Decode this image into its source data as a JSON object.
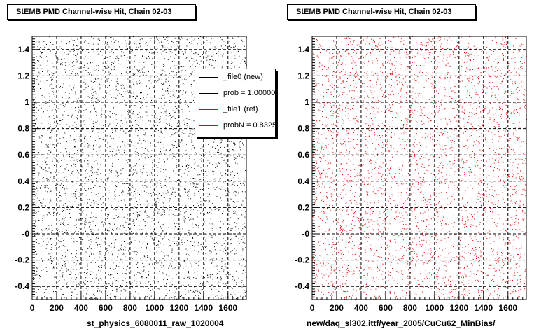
{
  "panels": [
    {
      "title": "StEMB PMD Channel-wise Hit, Chain 02-03",
      "xtitle": "st_physics_6080011_raw_1020004",
      "marker_color": "#000000"
    },
    {
      "title": "StEMB PMD Channel-wise Hit, Chain 02-03",
      "xtitle": "new/daq_sl302.ittf/year_2005/CuCu62_MinBias/",
      "marker_color": "#e00000"
    }
  ],
  "legend": {
    "entries": [
      {
        "label": "_file0 (new)",
        "color": "#000000"
      },
      {
        "label": "prob = 1.000000",
        "color": "#000000"
      },
      {
        "label": "_file1 (ref)",
        "color": "#e00000"
      },
      {
        "label": "probN = 0.83252",
        "color": "#e00000"
      }
    ]
  },
  "chart_data": [
    {
      "type": "scatter",
      "title": "StEMB PMD Channel-wise Hit, Chain 02-03",
      "xlabel": "st_physics_6080011_raw_1020004",
      "ylabel": "",
      "xlim": [
        0,
        1750
      ],
      "ylim": [
        -0.5,
        1.5
      ],
      "xticks": [
        "0",
        "200",
        "400",
        "600",
        "800",
        "1000",
        "1200",
        "1400",
        "1600"
      ],
      "yticks": [
        "-0.4",
        "-0.2",
        "-0",
        "0.2",
        "0.4",
        "0.6",
        "0.8",
        "1",
        "1.2",
        "1.4"
      ],
      "grid": true,
      "series": [
        {
          "name": "_file0 (new)",
          "color": "#000000"
        }
      ],
      "notes": "dense uniform scatter of hits over the full range"
    },
    {
      "type": "scatter",
      "title": "StEMB PMD Channel-wise Hit, Chain 02-03",
      "xlabel": "new/daq_sl302.ittf/year_2005/CuCu62_MinBias/",
      "ylabel": "",
      "xlim": [
        0,
        1750
      ],
      "ylim": [
        -0.5,
        1.5
      ],
      "xticks": [
        "0",
        "200",
        "400",
        "600",
        "800",
        "1000",
        "1200",
        "1400",
        "1600"
      ],
      "yticks": [
        "-0.4",
        "-0.2",
        "-0",
        "0.2",
        "0.4",
        "0.6",
        "0.8",
        "1",
        "1.2",
        "1.4"
      ],
      "grid": true,
      "series": [
        {
          "name": "_file1 (ref)",
          "color": "#e00000"
        }
      ],
      "notes": "dense uniform scatter of hits over the full range"
    }
  ]
}
